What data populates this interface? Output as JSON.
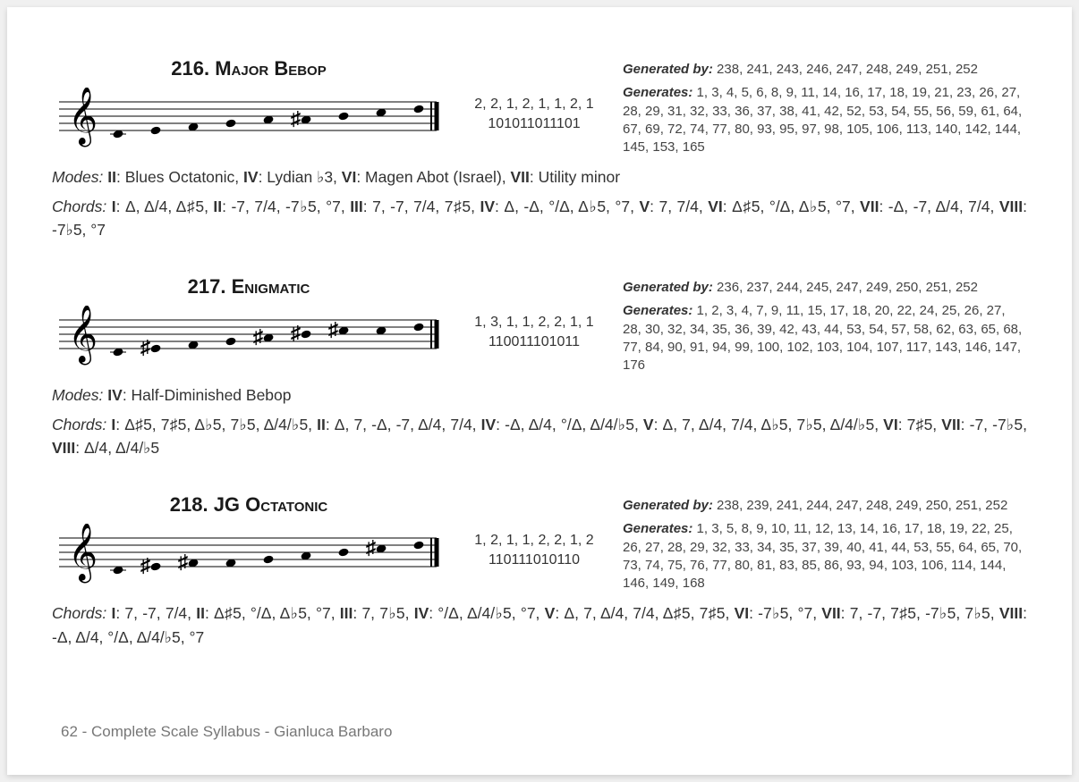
{
  "footer": "62 - Complete Scale Syllabus - Gianluca Barbaro",
  "scales": [
    {
      "number": "216.",
      "name": "Major Bebop",
      "intervals": "2, 2, 1, 2, 1, 1, 2, 1",
      "binary": "101011011101",
      "generated_by_label": "Generated by:",
      "generated_by": "238, 241, 243, 246, 247, 248, 249, 251, 252",
      "generates_label": "Generates:",
      "generates": "1, 3, 4, 5, 6, 8, 9, 11, 14, 16, 17, 18, 19, 21, 23, 26, 27, 28, 29, 31, 32, 33, 36, 37, 38, 41, 42, 52, 53, 54, 55, 56, 59, 61, 64, 67, 69, 72, 74, 77, 80, 93, 95, 97, 98, 105, 106, 113, 140, 142, 144, 145, 153, 165",
      "modes_html": "<span class='lead'>Modes:</span> <span class='bold'>II</span>: Blues Octatonic, <span class='bold'>IV</span>: Lydian ♭3, <span class='bold'>VI</span>: Magen Abot (Israel), <span class='bold'>VII</span>: Utility minor",
      "chords_html": "<span class='lead'>Chords:</span> <span class='bold'>I</span>: Δ, Δ/4, Δ♯5, <span class='bold'>II</span>: -7, 7/4, -7♭5, °7, <span class='bold'>III</span>: 7, -7, 7/4, 7♯5, <span class='bold'>IV</span>: Δ, -Δ, °/Δ, Δ♭5, °7, <span class='bold'>V</span>: 7, 7/4, <span class='bold'>VI</span>: Δ♯5, °/Δ, Δ♭5, °7, <span class='bold'>VII</span>: -Δ, -7, Δ/4, 7/4, <span class='bold'>VIII</span>: -7♭5, °7",
      "notes": [
        {
          "y": 52,
          "acc": null
        },
        {
          "y": 48,
          "acc": null
        },
        {
          "y": 44,
          "acc": null
        },
        {
          "y": 40,
          "acc": null
        },
        {
          "y": 36,
          "acc": null
        },
        {
          "y": 36,
          "acc": "♯"
        },
        {
          "y": 32,
          "acc": null
        },
        {
          "y": 28,
          "acc": null
        },
        {
          "y": 24,
          "acc": null
        }
      ]
    },
    {
      "number": "217.",
      "name": "Enigmatic",
      "intervals": "1, 3, 1, 1, 2, 2, 1, 1",
      "binary": "110011101011",
      "generated_by_label": "Generated by:",
      "generated_by": "236, 237, 244, 245, 247, 249, 250, 251, 252",
      "generates_label": "Generates:",
      "generates": "1, 2, 3, 4, 7, 9, 11, 15, 17, 18, 20, 22, 24, 25, 26, 27, 28, 30, 32, 34, 35, 36, 39, 42, 43, 44, 53, 54, 57, 58, 62, 63, 65, 68, 77, 84, 90, 91, 94, 99, 100, 102, 103, 104, 107, 117, 143, 146, 147, 176",
      "modes_html": "<span class='lead'>Modes:</span> <span class='bold'>IV</span>: Half-Diminished Bebop",
      "chords_html": "<span class='lead'>Chords:</span> <span class='bold'>I</span>: Δ♯5, 7♯5, Δ♭5, 7♭5, Δ/4/♭5, <span class='bold'>II</span>: Δ, 7, -Δ, -7, Δ/4, 7/4, <span class='bold'>IV</span>: -Δ, Δ/4, °/Δ, Δ/4/♭5, <span class='bold'>V</span>: Δ, 7, Δ/4, 7/4, Δ♭5, 7♭5, Δ/4/♭5, <span class='bold'>VI</span>: 7♯5, <span class='bold'>VII</span>: -7, -7♭5, <span class='bold'>VIII</span>: Δ/4, Δ/4/♭5",
      "notes": [
        {
          "y": 52,
          "acc": null
        },
        {
          "y": 48,
          "acc": "♯"
        },
        {
          "y": 44,
          "acc": null
        },
        {
          "y": 40,
          "acc": null
        },
        {
          "y": 36,
          "acc": "♯"
        },
        {
          "y": 32,
          "acc": "♯"
        },
        {
          "y": 28,
          "acc": "♯"
        },
        {
          "y": 28,
          "acc": null
        },
        {
          "y": 24,
          "acc": null
        }
      ]
    },
    {
      "number": "218.",
      "name": "JG Octatonic",
      "intervals": "1, 2, 1, 1, 2, 2, 1, 2",
      "binary": "110111010110",
      "generated_by_label": "Generated by:",
      "generated_by": "238, 239, 241, 244, 247, 248, 249, 250, 251, 252",
      "generates_label": "Generates:",
      "generates": "1, 3, 5, 8, 9, 10, 11, 12, 13, 14, 16, 17, 18, 19, 22, 25, 26, 27, 28, 29, 32, 33, 34, 35, 37, 39, 40, 41, 44, 53, 55, 64, 65, 70, 73, 74, 75, 76, 77, 80, 81, 83, 85, 86, 93, 94, 103, 106, 114, 144, 146, 149, 168",
      "modes_html": "",
      "chords_html": "<span class='lead'>Chords:</span> <span class='bold'>I</span>: 7, -7, 7/4, <span class='bold'>II</span>: Δ♯5, °/Δ, Δ♭5, °7, <span class='bold'>III</span>: 7, 7♭5, <span class='bold'>IV</span>: °/Δ, Δ/4/♭5, °7, <span class='bold'>V</span>: Δ, 7, Δ/4, 7/4, Δ♯5, 7♯5, <span class='bold'>VI</span>: -7♭5, °7, <span class='bold'>VII</span>: 7, -7, 7♯5, -7♭5, 7♭5, <span class='bold'>VIII</span>: -Δ, Δ/4, °/Δ, Δ/4/♭5, °7",
      "notes": [
        {
          "y": 52,
          "acc": null
        },
        {
          "y": 48,
          "acc": "♯"
        },
        {
          "y": 44,
          "acc": "♯"
        },
        {
          "y": 44,
          "acc": null
        },
        {
          "y": 40,
          "acc": null
        },
        {
          "y": 36,
          "acc": null
        },
        {
          "y": 32,
          "acc": null
        },
        {
          "y": 28,
          "acc": "♯"
        },
        {
          "y": 24,
          "acc": null
        }
      ]
    }
  ]
}
